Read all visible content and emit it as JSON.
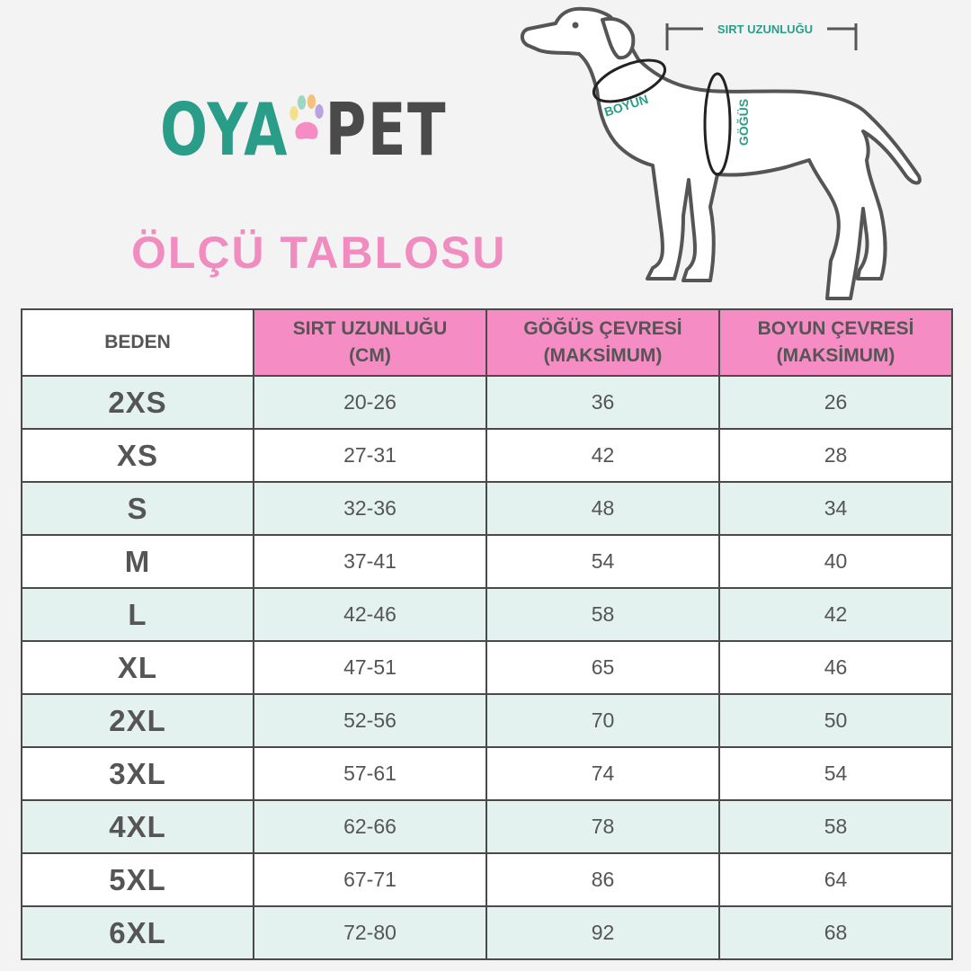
{
  "brand": {
    "oya": "OYA",
    "pet": "PET"
  },
  "title": "ÖLÇÜ TABLOSU",
  "diagram": {
    "back_length": "SIRT UZUNLUĞU",
    "neck": "BOYUN",
    "chest": "GÖĞÜS"
  },
  "colors": {
    "teal": "#2a9d88",
    "pink": "#f58cc4",
    "row_tint": "#e3f2ef",
    "text": "#555555"
  },
  "table": {
    "headers": {
      "size": "BEDEN",
      "back": {
        "line1": "SIRT UZUNLUĞU",
        "line2": "(CM)"
      },
      "chest": {
        "line1": "GÖĞÜS ÇEVRESİ",
        "line2": "(MAKSİMUM)"
      },
      "neck": {
        "line1": "BOYUN ÇEVRESİ",
        "line2": "(MAKSİMUM)"
      }
    },
    "rows": [
      {
        "size": "2XS",
        "back": "20-26",
        "chest": "36",
        "neck": "26"
      },
      {
        "size": "XS",
        "back": "27-31",
        "chest": "42",
        "neck": "28"
      },
      {
        "size": "S",
        "back": "32-36",
        "chest": "48",
        "neck": "34"
      },
      {
        "size": "M",
        "back": "37-41",
        "chest": "54",
        "neck": "40"
      },
      {
        "size": "L",
        "back": "42-46",
        "chest": "58",
        "neck": "42"
      },
      {
        "size": "XL",
        "back": "47-51",
        "chest": "65",
        "neck": "46"
      },
      {
        "size": "2XL",
        "back": "52-56",
        "chest": "70",
        "neck": "50"
      },
      {
        "size": "3XL",
        "back": "57-61",
        "chest": "74",
        "neck": "54"
      },
      {
        "size": "4XL",
        "back": "62-66",
        "chest": "78",
        "neck": "58"
      },
      {
        "size": "5XL",
        "back": "67-71",
        "chest": "86",
        "neck": "64"
      },
      {
        "size": "6XL",
        "back": "72-80",
        "chest": "92",
        "neck": "68"
      }
    ]
  }
}
